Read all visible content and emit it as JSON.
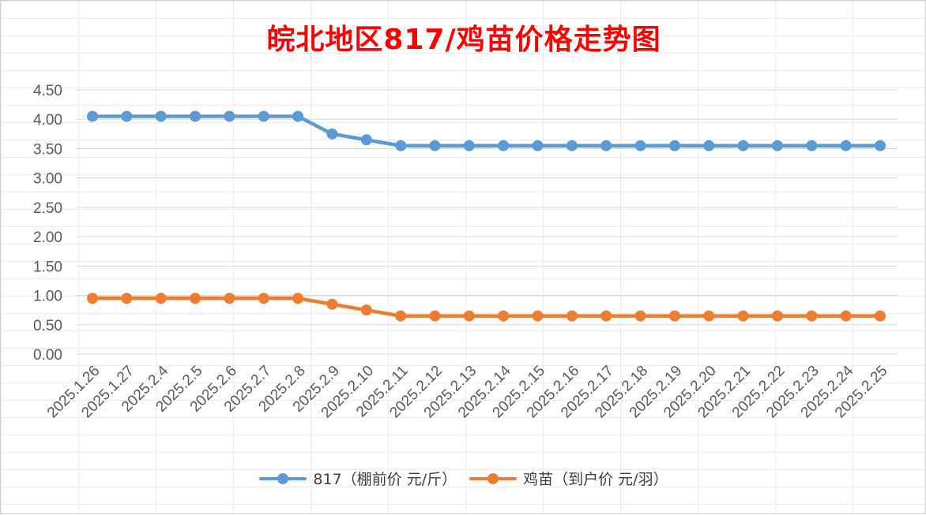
{
  "chart_data": {
    "type": "line",
    "title": "皖北地区817/鸡苗价格走势图",
    "categories": [
      "2025.1.26",
      "2025.1.27",
      "2025.2.4",
      "2025.2.5",
      "2025.2.6",
      "2025.2.7",
      "2025.2.8",
      "2025.2.9",
      "2025.2.10",
      "2025.2.11",
      "2025.2.12",
      "2025.2.13",
      "2025.2.14",
      "2025.2.15",
      "2025.2.16",
      "2025.2.17",
      "2025.2.18",
      "2025.2.19",
      "2025.2.20",
      "2025.2.21",
      "2025.2.22",
      "2025.2.23",
      "2025.2.24",
      "2025.2.25"
    ],
    "series": [
      {
        "name": "817（棚前价 元/斤）",
        "color": "#5b9bd5",
        "values": [
          4.05,
          4.05,
          4.05,
          4.05,
          4.05,
          4.05,
          4.05,
          3.75,
          3.65,
          3.55,
          3.55,
          3.55,
          3.55,
          3.55,
          3.55,
          3.55,
          3.55,
          3.55,
          3.55,
          3.55,
          3.55,
          3.55,
          3.55,
          3.55
        ]
      },
      {
        "name": "鸡苗（到户价 元/羽）",
        "color": "#ed7d31",
        "values": [
          0.95,
          0.95,
          0.95,
          0.95,
          0.95,
          0.95,
          0.95,
          0.85,
          0.75,
          0.65,
          0.65,
          0.65,
          0.65,
          0.65,
          0.65,
          0.65,
          0.65,
          0.65,
          0.65,
          0.65,
          0.65,
          0.65,
          0.65,
          0.65
        ]
      }
    ],
    "yticks": [
      "0.00",
      "0.50",
      "1.00",
      "1.50",
      "2.00",
      "2.50",
      "3.00",
      "3.50",
      "4.00",
      "4.50"
    ],
    "ylim": [
      0,
      4.5
    ],
    "grid": true,
    "legend_position": "bottom",
    "xlabel": "",
    "ylabel": ""
  }
}
